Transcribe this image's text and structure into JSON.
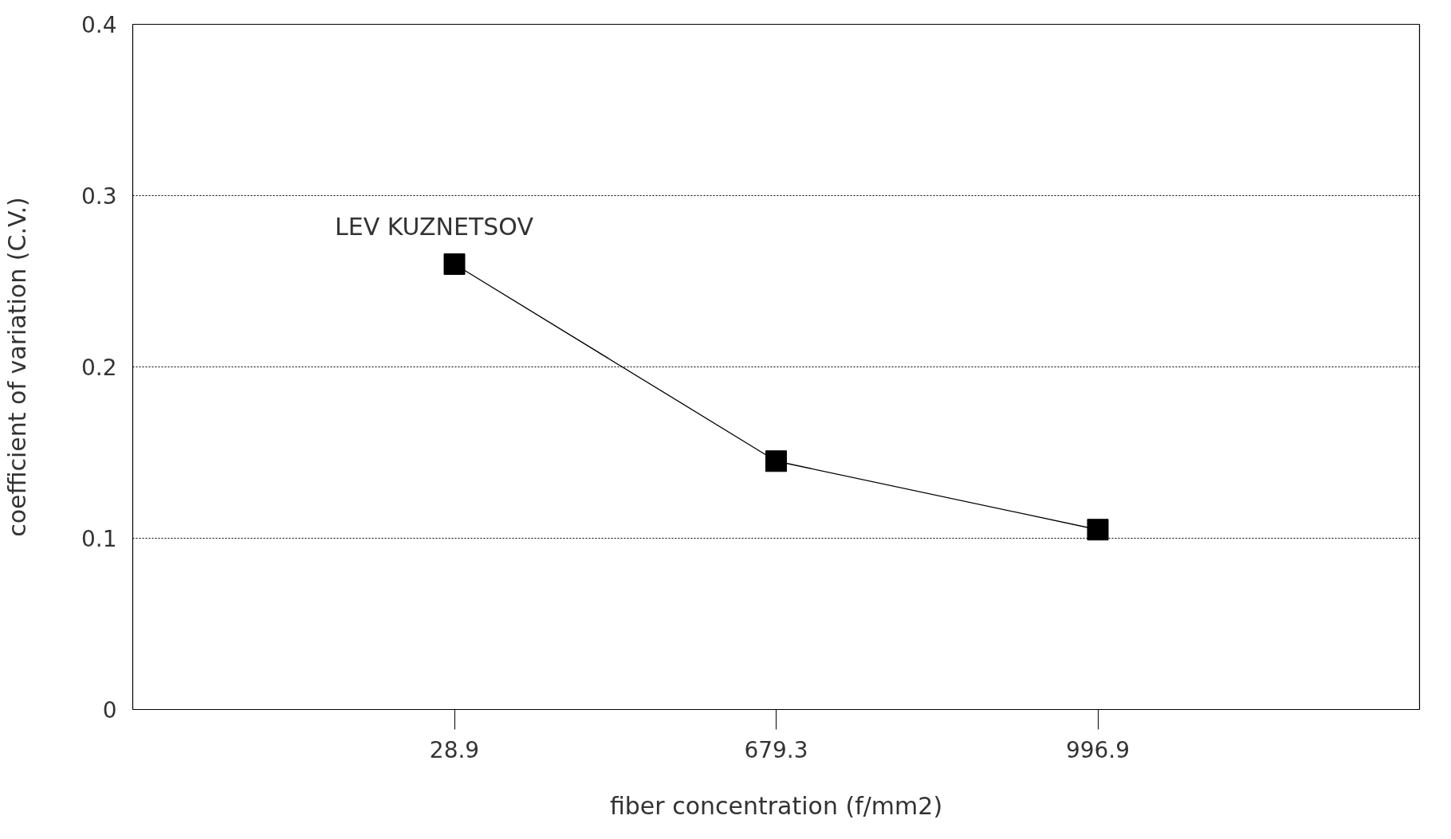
{
  "chart_data": {
    "type": "line",
    "xlabel": "fiber concentration (f/mm2)",
    "ylabel": "coefficient of variation (C.V.)",
    "categories": [
      "28.9",
      "679.3",
      "996.9"
    ],
    "series": [
      {
        "name": "LEV KUZNETSOV",
        "color": "#000000",
        "values": [
          0.26,
          0.145,
          0.105
        ]
      }
    ],
    "ylim": [
      0,
      0.4
    ],
    "yticks": [
      0,
      0.1,
      0.2,
      0.3,
      0.4
    ],
    "grid": "y",
    "marker": "square",
    "line_style": "solid"
  }
}
